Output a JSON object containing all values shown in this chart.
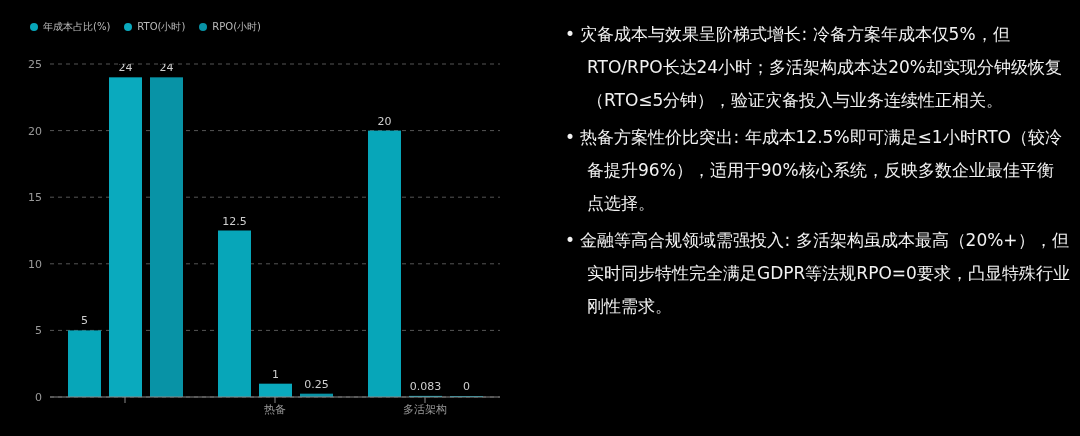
{
  "chart_data": [
    {
      "type": "bar",
      "categories": [
        null,
        "热备",
        "多活架构"
      ],
      "series": [
        {
          "name": "年成本占比(%)",
          "color": "#07a6b9",
          "values": [
            5,
            12.5,
            20
          ]
        },
        {
          "name": "RTO(小时)",
          "color": "#0aaabe",
          "values": [
            24,
            1,
            0.083
          ]
        },
        {
          "name": "RPO(小时)",
          "color": "#0893a6",
          "values": [
            24,
            0.25,
            0
          ]
        }
      ],
      "ylim": [
        0,
        25
      ],
      "yticks": [
        0,
        5,
        10,
        15,
        20,
        25
      ],
      "grid": "y",
      "legend": "top left",
      "data_labels": true
    },
    {
      "type": "other",
      "annotations": [
        "• 灾备成本与效果呈阶梯式增长: 冷备方案年成本仅5%，但RTO/RPO长达24小时；多活架构成本达20%却实现分钟级恢复（RTO≤5分钟），验证灾备投入与业务连续性正相关。",
        "• 热备方案性价比突出: 年成本12.5%即可满足≤1小时RTO（较冷备提升96%），适用于90%核心系统，反映多数企业最佳平衡点选择。",
        "• 金融等高合规领域需强投入: 多活架构虽成本最高（20%+），但实时同步特性完全满足GDPR等法规RPO=0要求，凸显特殊行业刚性需求。"
      ]
    }
  ]
}
